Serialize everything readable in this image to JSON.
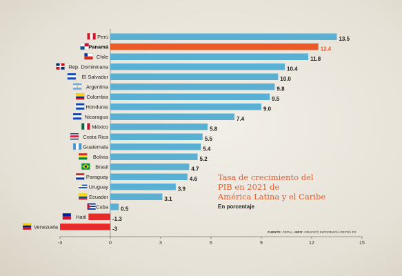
{
  "chart_data": {
    "type": "bar",
    "orientation": "horizontal",
    "title": "Tasa de crecimiento del PIB en 2021 de América Latina y el Caribe",
    "title_lines": [
      "Tasa de crecimiento del",
      "PIB en 2021 de",
      "América Latina y el Caribe"
    ],
    "subtitle": "En porcentaje",
    "categories": [
      "Perú",
      "Panamá",
      "Chile",
      "Rep. Dominicana",
      "El Salvador",
      "Argentina",
      "Colombia",
      "Honduras",
      "Nicaragua",
      "México",
      "Costa Rica",
      "Guatemala",
      "Bolivia",
      "Brasil",
      "Paraguay",
      "Uruguay",
      "Ecuador",
      "Cuba",
      "Haití",
      "Venezuela"
    ],
    "values": [
      13.5,
      12.4,
      11.8,
      10.4,
      10.0,
      9.8,
      9.5,
      9.0,
      7.4,
      5.8,
      5.5,
      5.4,
      5.2,
      4.7,
      4.6,
      3.9,
      3.1,
      0.5,
      -1.3,
      -3
    ],
    "value_labels": [
      "13.5",
      "12.4",
      "11.8",
      "10.4",
      "10.0",
      "9.8",
      "9.5",
      "9.0",
      "7.4",
      "5.8",
      "5.5",
      "5.4",
      "5.2",
      "4.7",
      "4.6",
      "3.9",
      "3.1",
      "0.5",
      "-1.3",
      "-3"
    ],
    "highlight_index": 1,
    "xlim": [
      -3,
      15
    ],
    "xticks": [
      -3,
      0,
      3,
      6,
      9,
      12,
      15
    ],
    "grid": false,
    "colors": {
      "positive": "#5ab0d3",
      "negative": "#e62b2b",
      "highlight": "#ee5a25",
      "highlight_text": "#e8592a"
    },
    "flags": [
      "peru-flag-icon",
      "panama-flag-icon",
      "chile-flag-icon",
      "dominican-republic-flag-icon",
      "el-salvador-flag-icon",
      "argentina-flag-icon",
      "colombia-flag-icon",
      "honduras-flag-icon",
      "nicaragua-flag-icon",
      "mexico-flag-icon",
      "costa-rica-flag-icon",
      "guatemala-flag-icon",
      "bolivia-flag-icon",
      "brazil-flag-icon",
      "paraguay-flag-icon",
      "uruguay-flag-icon",
      "ecuador-flag-icon",
      "cuba-flag-icon",
      "haiti-flag-icon",
      "venezuela-flag-icon"
    ]
  },
  "source": {
    "label": "FUENTE:",
    "text": "CEPAL.",
    "info_label": "INFO:",
    "info_text": "GRÁFICO INFOGRAFÍA REYES FG"
  }
}
